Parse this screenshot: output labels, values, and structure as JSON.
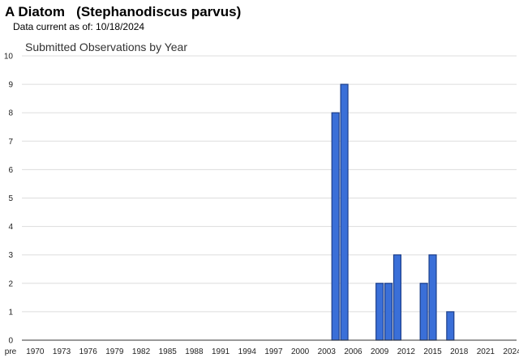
{
  "header": {
    "title": "A Diatom   (Stephanodiscus parvus)",
    "subtitle": "Data current as of: 10/18/2024"
  },
  "chart_data": {
    "type": "bar",
    "title": "Submitted Observations by Year",
    "xlabel": "",
    "ylabel": "",
    "ylim": [
      0,
      10
    ],
    "yticks": [
      0,
      1,
      2,
      3,
      4,
      5,
      6,
      7,
      8,
      9,
      10
    ],
    "grid": true,
    "bar_color": "#3a6fd8",
    "bar_edge_color": "#1d3f8a",
    "categories": [
      "pre",
      "1970",
      "1971",
      "1972",
      "1973",
      "1974",
      "1975",
      "1976",
      "1977",
      "1978",
      "1979",
      "1980",
      "1981",
      "1982",
      "1983",
      "1984",
      "1985",
      "1986",
      "1987",
      "1988",
      "1989",
      "1990",
      "1991",
      "1992",
      "1993",
      "1994",
      "1995",
      "1996",
      "1997",
      "1998",
      "1999",
      "2000",
      "2001",
      "2002",
      "2003",
      "2004",
      "2005",
      "2006",
      "2007",
      "2008",
      "2009",
      "2010",
      "2011",
      "2012",
      "2013",
      "2014",
      "2015",
      "2016",
      "2017",
      "2018",
      "2019",
      "2020",
      "2021",
      "2022",
      "2023",
      "2024"
    ],
    "tick_labels": [
      "pre",
      "1970",
      "1973",
      "1976",
      "1979",
      "1982",
      "1985",
      "1988",
      "1991",
      "1994",
      "1997",
      "2000",
      "2003",
      "2006",
      "2009",
      "2012",
      "2015",
      "2018",
      "2021",
      "2024"
    ],
    "values": [
      0,
      0,
      0,
      0,
      0,
      0,
      0,
      0,
      0,
      0,
      0,
      0,
      0,
      0,
      0,
      0,
      0,
      0,
      0,
      0,
      0,
      0,
      0,
      0,
      0,
      0,
      0,
      0,
      0,
      0,
      0,
      0,
      0,
      0,
      0,
      8,
      9,
      0,
      0,
      0,
      2,
      2,
      3,
      0,
      0,
      2,
      3,
      0,
      1,
      0,
      0,
      0,
      0,
      0,
      0,
      0
    ]
  }
}
